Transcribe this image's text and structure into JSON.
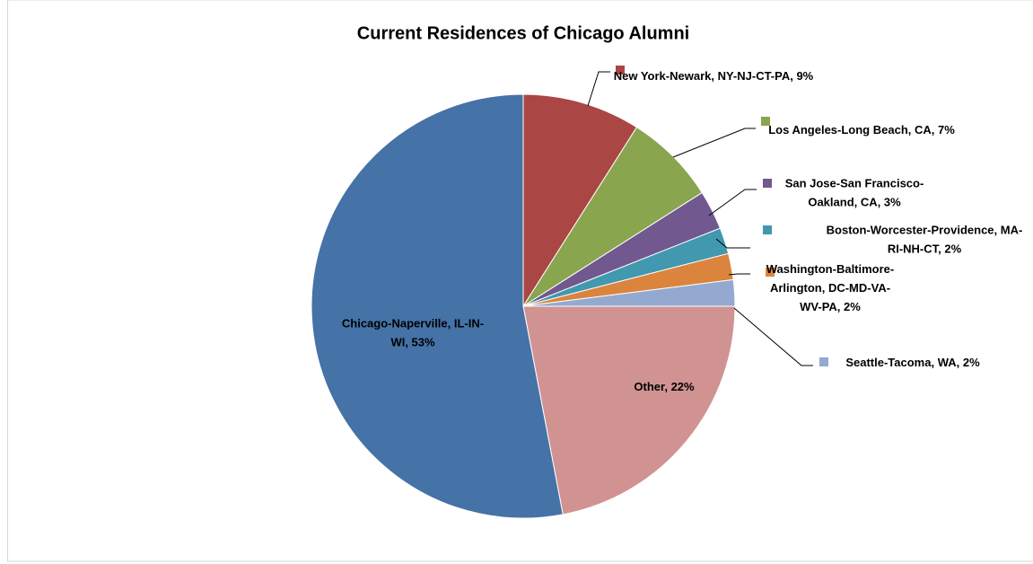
{
  "chart_data": {
    "type": "pie",
    "title": "Current Residences of Chicago Alumni",
    "values": [
      9,
      7,
      3,
      2,
      2,
      2,
      22,
      53
    ],
    "value_labels": [
      "New York-Newark, NY-NJ-CT-PA, 9%",
      "Los Angeles-Long Beach, CA, 7%",
      "San Jose-San Francisco-Oakland, CA, 3%",
      "Boston-Worcester-Providence, MA-RI-NH-CT, 2%",
      "Washington-Baltimore-Arlington, DC-MD-VA-WV-PA, 2%",
      "Seattle-Tacoma, WA, 2%",
      "Other, 22%",
      "Chicago-Naperville, IL-IN-WI, 53%"
    ],
    "colors": [
      "#aa4644",
      "#89a54e",
      "#71588f",
      "#4198af",
      "#db843d",
      "#93a9cf",
      "#d19392",
      "#4572a7"
    ]
  }
}
